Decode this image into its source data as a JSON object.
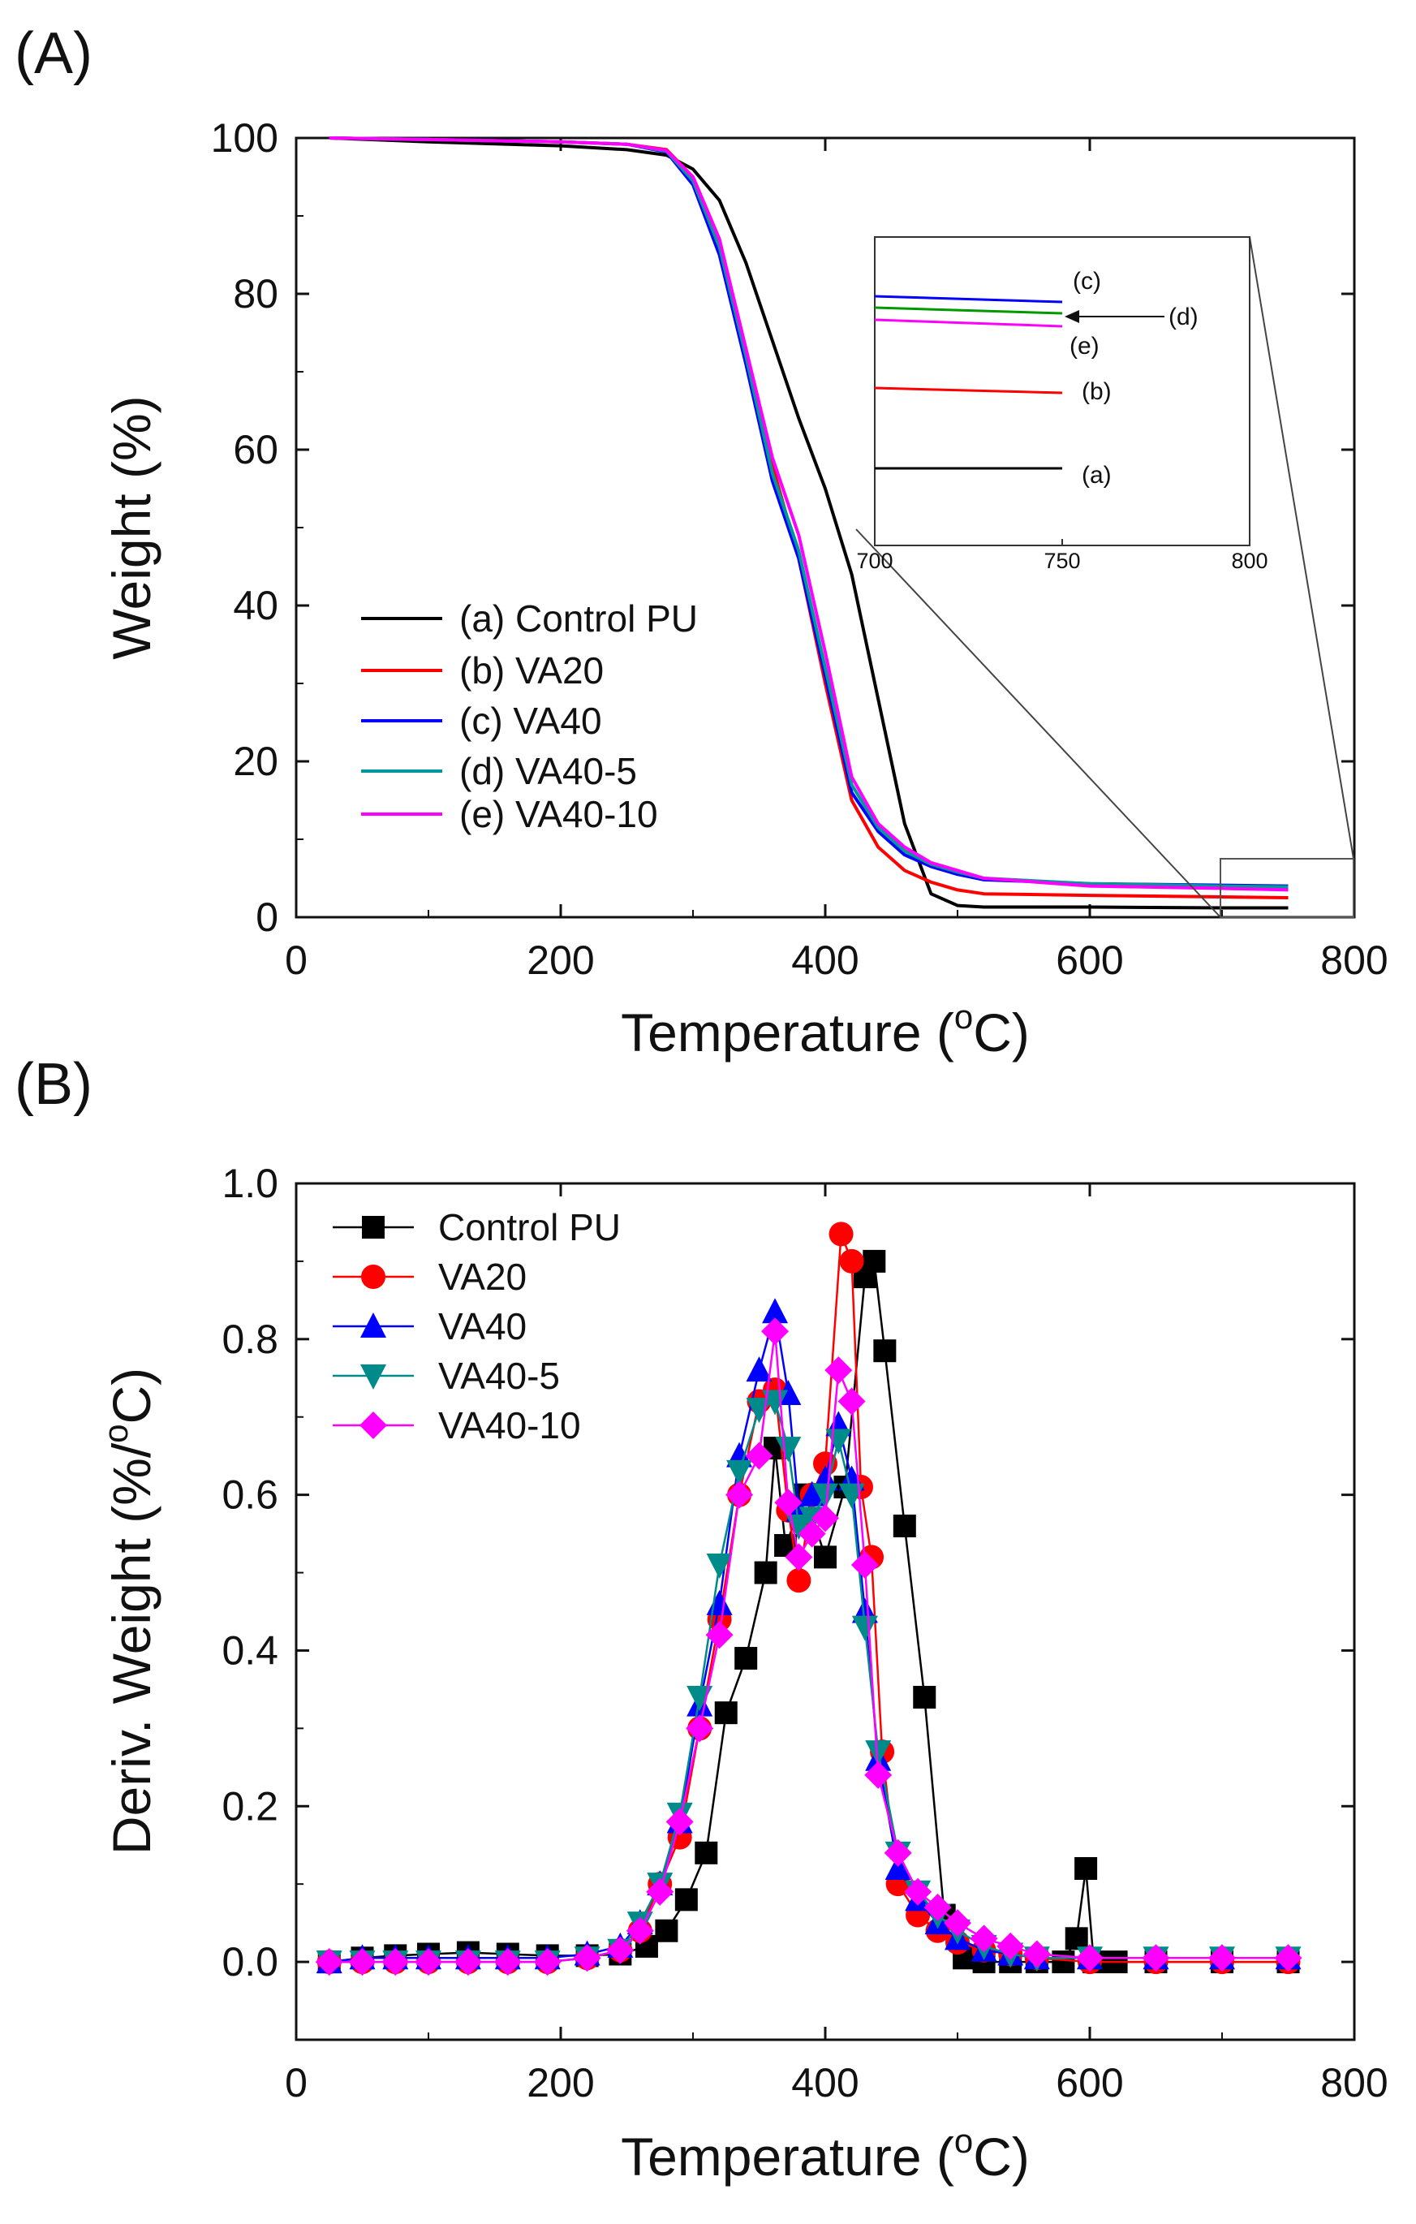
{
  "panels": {
    "a_label": "(A)",
    "b_label": "(B)"
  },
  "chart_data": [
    {
      "id": "A",
      "type": "line",
      "xlabel_main": "Temperature (",
      "xlabel_sup": "o",
      "xlabel_tail": "C)",
      "ylabel": "Weight (%)",
      "xlim": [
        0,
        800
      ],
      "ylim": [
        0,
        100
      ],
      "xticks": [
        "0",
        "200",
        "400",
        "600",
        "800"
      ],
      "yticks": [
        "0",
        "20",
        "40",
        "60",
        "80",
        "100"
      ],
      "legend_position": "lower-left",
      "series": [
        {
          "key": "a",
          "name": "(a) Control PU",
          "color": "#000000",
          "x": [
            25,
            100,
            200,
            250,
            280,
            300,
            320,
            340,
            360,
            380,
            400,
            420,
            440,
            460,
            480,
            500,
            520,
            600,
            700,
            750
          ],
          "y": [
            100,
            99.5,
            99,
            98.5,
            97.8,
            96,
            92,
            84,
            74,
            64,
            55,
            44,
            28,
            12,
            3,
            1.5,
            1.3,
            1.3,
            1.2,
            1.2
          ]
        },
        {
          "key": "b",
          "name": "(b) VA20",
          "color": "#ff0000",
          "x": [
            25,
            100,
            200,
            250,
            280,
            300,
            320,
            340,
            360,
            380,
            400,
            420,
            440,
            460,
            480,
            500,
            520,
            600,
            700,
            750
          ],
          "y": [
            100,
            99.8,
            99.5,
            99.2,
            98.5,
            95,
            87,
            72,
            58,
            46,
            30,
            15,
            9,
            6,
            4.5,
            3.5,
            3,
            2.8,
            2.6,
            2.5
          ]
        },
        {
          "key": "c",
          "name": "(c) VA40",
          "color": "#0000ff",
          "x": [
            25,
            100,
            200,
            250,
            280,
            300,
            320,
            340,
            360,
            380,
            400,
            420,
            440,
            460,
            480,
            500,
            520,
            600,
            700,
            750
          ],
          "y": [
            100,
            99.8,
            99.5,
            99.2,
            98.2,
            94,
            85,
            71,
            56,
            46,
            31,
            16,
            11,
            8,
            6.5,
            5.5,
            4.8,
            4.3,
            4.1,
            4
          ]
        },
        {
          "key": "d",
          "name": "(d) VA40-5",
          "color": "#009999",
          "x": [
            25,
            100,
            200,
            250,
            280,
            300,
            320,
            340,
            360,
            380,
            400,
            420,
            440,
            460,
            480,
            500,
            520,
            600,
            700,
            750
          ],
          "y": [
            100,
            99.8,
            99.5,
            99.2,
            98.3,
            94.5,
            86,
            72,
            57,
            47,
            32,
            17,
            11.5,
            8.5,
            6.8,
            5.8,
            5,
            4.3,
            4,
            3.9
          ]
        },
        {
          "key": "e",
          "name": "(e) VA40-10",
          "color": "#ff00ff",
          "x": [
            25,
            100,
            200,
            250,
            280,
            300,
            320,
            340,
            360,
            380,
            400,
            420,
            440,
            460,
            480,
            500,
            520,
            600,
            700,
            750
          ],
          "y": [
            100,
            99.8,
            99.5,
            99.2,
            98.4,
            95,
            87,
            73,
            59,
            49,
            34,
            18,
            12,
            9,
            7,
            6,
            5,
            4,
            3.7,
            3.5
          ]
        }
      ],
      "inset": {
        "xticks": [
          "700",
          "750",
          "800"
        ],
        "labels": {
          "a": "(a)",
          "b": "(b)",
          "c": "(c)",
          "d": "(d)",
          "e": "(e)"
        }
      }
    },
    {
      "id": "B",
      "type": "line",
      "xlabel_main": "Temperature (",
      "xlabel_sup": "o",
      "xlabel_tail": "C)",
      "ylabel": "Deriv. Weight (%/",
      "ylabel_sup": "o",
      "ylabel_tail": "C)",
      "xlim": [
        0,
        800
      ],
      "ylim": [
        -0.1,
        1.0
      ],
      "xticks": [
        "0",
        "200",
        "400",
        "600",
        "800"
      ],
      "yticks": [
        "0.0",
        "0.2",
        "0.4",
        "0.6",
        "0.8",
        "1.0"
      ],
      "legend_position": "top-left",
      "series": [
        {
          "key": "a",
          "name": "Control PU",
          "color": "#000000",
          "marker": "square",
          "x": [
            25,
            50,
            75,
            100,
            130,
            160,
            190,
            220,
            245,
            265,
            280,
            295,
            310,
            325,
            340,
            355,
            362,
            370,
            385,
            400,
            415,
            430,
            437,
            445,
            460,
            475,
            490,
            505,
            520,
            540,
            560,
            580,
            590,
            597,
            603,
            620,
            650,
            700,
            750
          ],
          "y": [
            0.0,
            0.005,
            0.008,
            0.01,
            0.012,
            0.01,
            0.008,
            0.008,
            0.01,
            0.02,
            0.04,
            0.08,
            0.14,
            0.32,
            0.39,
            0.5,
            0.66,
            0.535,
            0.6,
            0.52,
            0.61,
            0.88,
            0.9,
            0.785,
            0.56,
            0.34,
            0.06,
            0.005,
            0.0,
            0.0,
            0.0,
            0.0,
            0.03,
            0.12,
            0.0,
            0.0,
            0.0,
            0.0,
            0.0
          ]
        },
        {
          "key": "b",
          "name": "VA20",
          "color": "#ff0000",
          "marker": "circle",
          "x": [
            25,
            50,
            75,
            100,
            130,
            160,
            190,
            220,
            245,
            260,
            275,
            290,
            305,
            320,
            335,
            350,
            362,
            372,
            380,
            390,
            400,
            412,
            420,
            427,
            435,
            443,
            455,
            470,
            485,
            500,
            520,
            540,
            560,
            600,
            650,
            700,
            750
          ],
          "y": [
            0.0,
            0.0,
            0.0,
            0.0,
            0.0,
            0.0,
            0.0,
            0.005,
            0.015,
            0.04,
            0.1,
            0.16,
            0.3,
            0.44,
            0.6,
            0.72,
            0.735,
            0.58,
            0.49,
            0.6,
            0.64,
            0.935,
            0.9,
            0.61,
            0.52,
            0.27,
            0.1,
            0.06,
            0.04,
            0.025,
            0.015,
            0.01,
            0.005,
            0.0,
            0.0,
            0.0,
            0.0
          ]
        },
        {
          "key": "c",
          "name": "VA40",
          "color": "#0000ff",
          "marker": "triangle-up",
          "x": [
            25,
            50,
            75,
            100,
            130,
            160,
            190,
            220,
            245,
            260,
            275,
            290,
            305,
            320,
            335,
            350,
            362,
            372,
            380,
            390,
            400,
            410,
            420,
            430,
            440,
            455,
            470,
            485,
            500,
            520,
            540,
            560,
            600,
            650,
            700,
            750
          ],
          "y": [
            0.0,
            0.005,
            0.005,
            0.005,
            0.005,
            0.005,
            0.005,
            0.01,
            0.02,
            0.05,
            0.1,
            0.18,
            0.33,
            0.46,
            0.65,
            0.76,
            0.835,
            0.73,
            0.58,
            0.6,
            0.62,
            0.69,
            0.62,
            0.45,
            0.26,
            0.12,
            0.08,
            0.05,
            0.03,
            0.015,
            0.01,
            0.005,
            0.005,
            0.005,
            0.005,
            0.005
          ]
        },
        {
          "key": "d",
          "name": "VA40-5",
          "color": "#008b8b",
          "marker": "triangle-down",
          "x": [
            25,
            50,
            75,
            100,
            130,
            160,
            190,
            220,
            245,
            260,
            275,
            290,
            305,
            320,
            335,
            350,
            362,
            372,
            380,
            390,
            400,
            410,
            420,
            430,
            440,
            455,
            470,
            485,
            500,
            520,
            540,
            560,
            600,
            650,
            700,
            750
          ],
          "y": [
            0.0,
            0.0,
            0.0,
            0.0,
            0.0,
            0.0,
            0.0,
            0.005,
            0.015,
            0.05,
            0.1,
            0.19,
            0.34,
            0.51,
            0.63,
            0.71,
            0.72,
            0.66,
            0.56,
            0.57,
            0.6,
            0.67,
            0.6,
            0.43,
            0.27,
            0.14,
            0.09,
            0.06,
            0.04,
            0.02,
            0.01,
            0.005,
            0.005,
            0.005,
            0.005,
            0.005
          ]
        },
        {
          "key": "e",
          "name": "VA40-10",
          "color": "#ff00ff",
          "marker": "diamond",
          "x": [
            25,
            50,
            75,
            100,
            130,
            160,
            190,
            220,
            245,
            260,
            275,
            290,
            305,
            320,
            335,
            350,
            362,
            372,
            380,
            390,
            400,
            410,
            420,
            430,
            440,
            455,
            470,
            485,
            500,
            520,
            540,
            560,
            600,
            650,
            700,
            750
          ],
          "y": [
            0.0,
            0.0,
            0.0,
            0.0,
            0.0,
            0.0,
            0.0,
            0.005,
            0.015,
            0.04,
            0.09,
            0.18,
            0.3,
            0.42,
            0.6,
            0.65,
            0.81,
            0.59,
            0.52,
            0.55,
            0.57,
            0.76,
            0.72,
            0.51,
            0.24,
            0.14,
            0.09,
            0.07,
            0.05,
            0.03,
            0.02,
            0.01,
            0.005,
            0.005,
            0.005,
            0.005
          ]
        }
      ]
    }
  ]
}
